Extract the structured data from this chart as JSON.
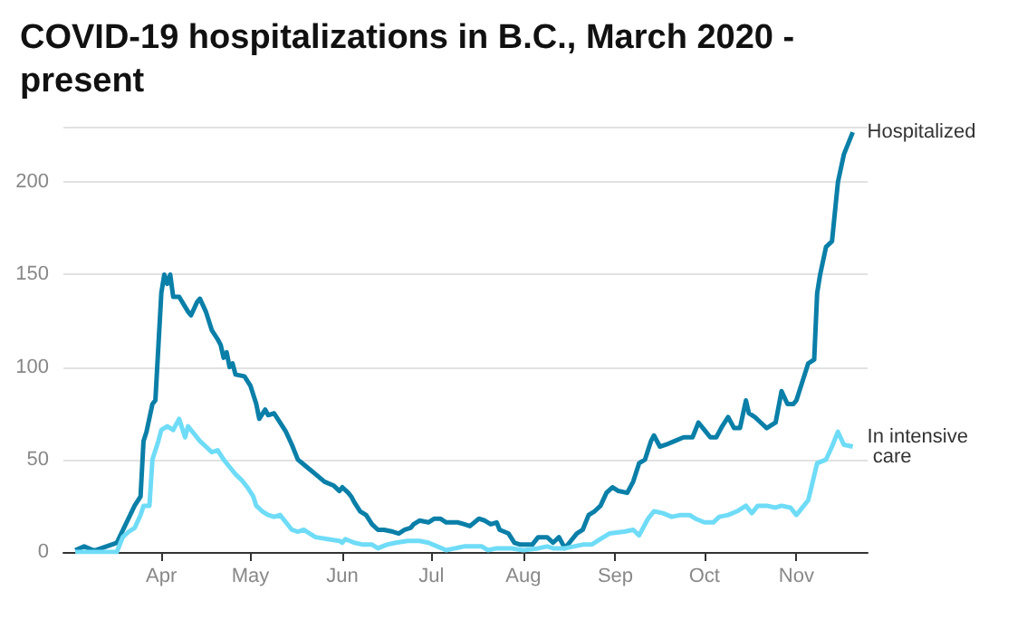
{
  "chart_data": {
    "type": "line",
    "title": "COVID-19 hospitalizations in B.C., March 2020 - present",
    "xlim": [
      "2020-02-28",
      "2020-11-25"
    ],
    "xticks": [
      {
        "value": "2020-04-01",
        "label": "Apr"
      },
      {
        "value": "2020-05-01",
        "label": "May"
      },
      {
        "value": "2020-06-01",
        "label": "Jun"
      },
      {
        "value": "2020-07-01",
        "label": "Jul"
      },
      {
        "value": "2020-08-01",
        "label": "Aug"
      },
      {
        "value": "2020-09-01",
        "label": "Sep"
      },
      {
        "value": "2020-10-01",
        "label": "Oct"
      },
      {
        "value": "2020-11-01",
        "label": "Nov"
      }
    ],
    "ylim": [
      0,
      230
    ],
    "yticks": [
      0,
      50,
      100,
      150,
      200
    ],
    "grid": "y",
    "legend": false,
    "marker": "none",
    "line_style": "solid",
    "series": [
      {
        "name": "Hospitalized",
        "color": "#0a7fa8",
        "x": [
          "2020-03-03",
          "2020-03-06",
          "2020-03-09",
          "2020-03-10",
          "2020-03-17",
          "2020-03-20",
          "2020-03-23",
          "2020-03-25",
          "2020-03-26",
          "2020-03-27",
          "2020-03-29",
          "2020-03-30",
          "2020-04-01",
          "2020-04-02",
          "2020-04-03",
          "2020-04-04",
          "2020-04-05",
          "2020-04-07",
          "2020-04-10",
          "2020-04-11",
          "2020-04-13",
          "2020-04-14",
          "2020-04-16",
          "2020-04-18",
          "2020-04-20",
          "2020-04-21",
          "2020-04-22",
          "2020-04-23",
          "2020-04-24",
          "2020-04-25",
          "2020-04-26",
          "2020-04-29",
          "2020-05-01",
          "2020-05-03",
          "2020-05-04",
          "2020-05-06",
          "2020-05-07",
          "2020-05-09",
          "2020-05-11",
          "2020-05-13",
          "2020-05-15",
          "2020-05-17",
          "2020-05-20",
          "2020-05-23",
          "2020-05-26",
          "2020-05-29",
          "2020-05-31",
          "2020-06-01",
          "2020-06-03",
          "2020-06-04",
          "2020-06-05",
          "2020-06-07",
          "2020-06-09",
          "2020-06-11",
          "2020-06-13",
          "2020-06-15",
          "2020-06-18",
          "2020-06-20",
          "2020-06-22",
          "2020-06-24",
          "2020-06-25",
          "2020-06-27",
          "2020-06-30",
          "2020-07-02",
          "2020-07-04",
          "2020-07-06",
          "2020-07-10",
          "2020-07-14",
          "2020-07-17",
          "2020-07-19",
          "2020-07-21",
          "2020-07-23",
          "2020-07-24",
          "2020-07-27",
          "2020-07-29",
          "2020-07-31",
          "2020-08-04",
          "2020-08-06",
          "2020-08-09",
          "2020-08-11",
          "2020-08-13",
          "2020-08-15",
          "2020-08-17",
          "2020-08-19",
          "2020-08-21",
          "2020-08-23",
          "2020-08-25",
          "2020-08-27",
          "2020-08-29",
          "2020-08-31",
          "2020-09-02",
          "2020-09-05",
          "2020-09-07",
          "2020-09-09",
          "2020-09-11",
          "2020-09-13",
          "2020-09-14",
          "2020-09-16",
          "2020-09-18",
          "2020-09-21",
          "2020-09-24",
          "2020-09-27",
          "2020-09-29",
          "2020-10-01",
          "2020-10-03",
          "2020-10-05",
          "2020-10-07",
          "2020-10-09",
          "2020-10-11",
          "2020-10-13",
          "2020-10-15",
          "2020-10-16",
          "2020-10-18",
          "2020-10-20",
          "2020-10-22",
          "2020-10-25",
          "2020-10-27",
          "2020-10-29",
          "2020-10-31",
          "2020-11-01",
          "2020-11-03",
          "2020-11-05",
          "2020-11-07",
          "2020-11-08",
          "2020-11-09",
          "2020-11-11",
          "2020-11-13",
          "2020-11-15",
          "2020-11-17",
          "2020-11-20"
        ],
        "values": [
          1,
          3,
          1,
          1,
          5,
          15,
          25,
          30,
          60,
          65,
          80,
          82,
          140,
          150,
          145,
          150,
          138,
          138,
          130,
          128,
          135,
          137,
          130,
          120,
          115,
          112,
          105,
          108,
          100,
          102,
          96,
          95,
          90,
          80,
          72,
          77,
          74,
          75,
          70,
          65,
          58,
          50,
          46,
          42,
          38,
          36,
          33,
          35,
          32,
          30,
          27,
          22,
          20,
          15,
          12,
          12,
          11,
          10,
          12,
          13,
          15,
          17,
          16,
          18,
          18,
          16,
          16,
          14,
          18,
          17,
          15,
          16,
          12,
          10,
          5,
          4,
          4,
          8,
          8,
          5,
          8,
          2,
          6,
          10,
          12,
          20,
          22,
          25,
          32,
          35,
          33,
          32,
          38,
          48,
          50,
          60,
          63,
          57,
          58,
          60,
          62,
          62,
          70,
          66,
          62,
          62,
          68,
          73,
          67,
          67,
          82,
          75,
          73,
          70,
          67,
          70,
          87,
          80,
          80,
          82,
          92,
          102,
          104,
          140,
          150,
          165,
          168,
          200,
          215,
          227
        ]
      },
      {
        "name": "In intensive care",
        "color": "#6fdcf7",
        "x": [
          "2020-03-03",
          "2020-03-17",
          "2020-03-19",
          "2020-03-21",
          "2020-03-23",
          "2020-03-25",
          "2020-03-26",
          "2020-03-28",
          "2020-03-29",
          "2020-03-31",
          "2020-04-01",
          "2020-04-03",
          "2020-04-05",
          "2020-04-07",
          "2020-04-09",
          "2020-04-10",
          "2020-04-12",
          "2020-04-14",
          "2020-04-16",
          "2020-04-18",
          "2020-04-20",
          "2020-04-22",
          "2020-04-24",
          "2020-04-26",
          "2020-04-28",
          "2020-04-30",
          "2020-05-02",
          "2020-05-03",
          "2020-05-05",
          "2020-05-07",
          "2020-05-09",
          "2020-05-11",
          "2020-05-13",
          "2020-05-15",
          "2020-05-17",
          "2020-05-19",
          "2020-05-21",
          "2020-05-23",
          "2020-05-27",
          "2020-05-31",
          "2020-06-01",
          "2020-06-02",
          "2020-06-05",
          "2020-06-08",
          "2020-06-11",
          "2020-06-13",
          "2020-06-16",
          "2020-06-19",
          "2020-06-23",
          "2020-06-27",
          "2020-06-30",
          "2020-07-03",
          "2020-07-06",
          "2020-07-09",
          "2020-07-12",
          "2020-07-15",
          "2020-07-18",
          "2020-07-20",
          "2020-07-23",
          "2020-07-28",
          "2020-08-01",
          "2020-08-06",
          "2020-08-09",
          "2020-08-11",
          "2020-08-15",
          "2020-08-18",
          "2020-08-21",
          "2020-08-24",
          "2020-08-27",
          "2020-08-30",
          "2020-09-04",
          "2020-09-07",
          "2020-09-09",
          "2020-09-12",
          "2020-09-14",
          "2020-09-17",
          "2020-09-20",
          "2020-09-23",
          "2020-09-26",
          "2020-09-28",
          "2020-10-01",
          "2020-10-04",
          "2020-10-06",
          "2020-10-09",
          "2020-10-12",
          "2020-10-15",
          "2020-10-17",
          "2020-10-19",
          "2020-10-22",
          "2020-10-25",
          "2020-10-27",
          "2020-10-30",
          "2020-11-01",
          "2020-11-05",
          "2020-11-08",
          "2020-11-11",
          "2020-11-13",
          "2020-11-15",
          "2020-11-17",
          "2020-11-20"
        ],
        "values": [
          0,
          0,
          8,
          11,
          13,
          20,
          25,
          25,
          50,
          60,
          66,
          68,
          66,
          72,
          62,
          68,
          64,
          60,
          57,
          54,
          55,
          50,
          46,
          42,
          39,
          35,
          30,
          25,
          22,
          20,
          19,
          20,
          16,
          12,
          11,
          12,
          10,
          8,
          7,
          6,
          5,
          7,
          5,
          4,
          4,
          2,
          4,
          5,
          6,
          6,
          5,
          3,
          1,
          2,
          3,
          3,
          3,
          1,
          2,
          2,
          1,
          2,
          3,
          2,
          2,
          3,
          4,
          4,
          7,
          10,
          11,
          12,
          9,
          18,
          22,
          21,
          19,
          20,
          20,
          18,
          16,
          16,
          19,
          20,
          22,
          25,
          21,
          25,
          25,
          24,
          25,
          24,
          20,
          28,
          48,
          50,
          57,
          65,
          58,
          57
        ]
      }
    ]
  }
}
